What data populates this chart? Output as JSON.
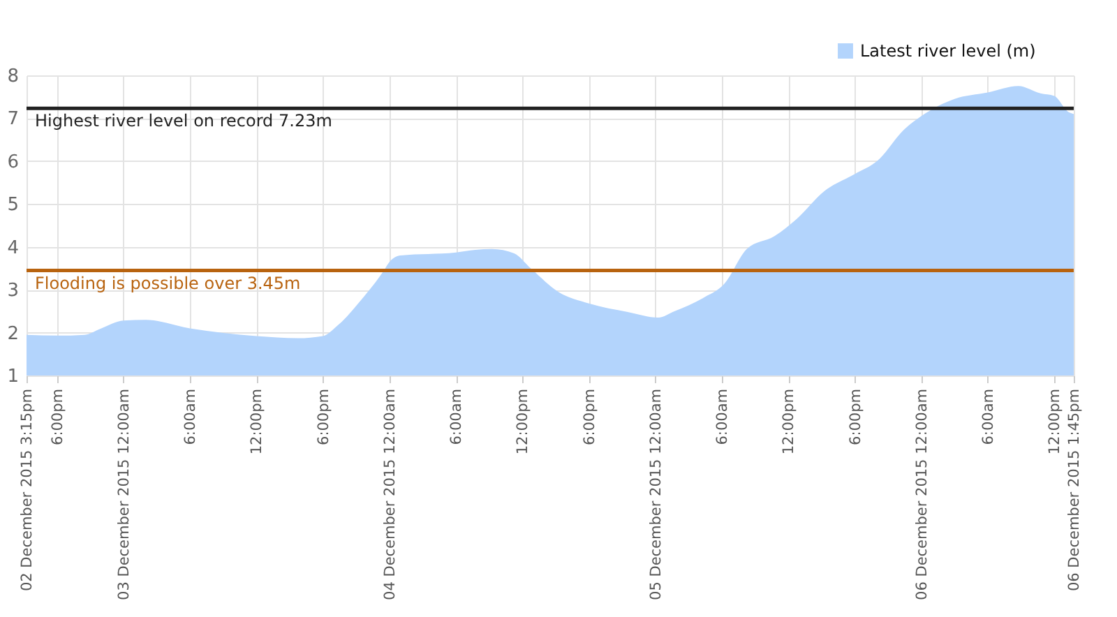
{
  "chart_data": {
    "type": "area",
    "x": [
      "2015-12-02T15:15",
      "2015-12-02T18:00",
      "2015-12-02T20:30",
      "2015-12-02T22:00",
      "2015-12-03T00:00",
      "2015-12-03T02:00",
      "2015-12-03T06:00",
      "2015-12-03T12:00",
      "2015-12-03T15:45",
      "2015-12-03T18:00",
      "2015-12-03T19:15",
      "2015-12-03T21:30",
      "2015-12-03T23:30",
      "2015-12-04T00:00",
      "2015-12-04T01:00",
      "2015-12-04T06:00",
      "2015-12-04T07:45",
      "2015-12-04T09:15",
      "2015-12-04T11:15",
      "2015-12-04T12:45",
      "2015-12-04T15:15",
      "2015-12-04T18:00",
      "2015-12-04T21:30",
      "2015-12-05T00:15",
      "2015-12-05T01:45",
      "2015-12-05T04:15",
      "2015-12-05T06:15",
      "2015-12-05T08:15",
      "2015-12-05T10:45",
      "2015-12-05T12:45",
      "2015-12-05T15:15",
      "2015-12-05T18:00",
      "2015-12-05T20:00",
      "2015-12-05T22:30",
      "2015-12-06T00:00",
      "2015-12-06T03:00",
      "2015-12-06T06:00",
      "2015-12-06T08:45",
      "2015-12-06T10:45",
      "2015-12-06T12:00",
      "2015-12-06T13:15",
      "2015-12-06T13:45"
    ],
    "series": [
      {
        "name": "Latest river level (m)",
        "color": "#b3d4fc",
        "values": [
          1.95,
          1.93,
          1.95,
          2.1,
          2.28,
          2.3,
          2.1,
          1.92,
          1.87,
          1.92,
          2.15,
          2.78,
          3.45,
          3.65,
          3.8,
          3.87,
          3.93,
          3.95,
          3.85,
          3.5,
          2.95,
          2.68,
          2.48,
          2.35,
          2.5,
          2.8,
          3.15,
          3.95,
          4.25,
          4.65,
          5.3,
          5.7,
          6.0,
          6.75,
          7.05,
          7.45,
          7.6,
          7.75,
          7.58,
          7.52,
          7.15,
          7.1
        ]
      }
    ],
    "xlim": [
      "2015-12-02T15:15",
      "2015-12-06T13:45"
    ],
    "xticks": [
      {
        "value": "2015-12-02T15:15",
        "label": "02 December 2015 3:15pm"
      },
      {
        "value": "2015-12-02T18:00",
        "label": "6:00pm"
      },
      {
        "value": "2015-12-03T00:00",
        "label": "03 December 2015 12:00am"
      },
      {
        "value": "2015-12-03T06:00",
        "label": "6:00am"
      },
      {
        "value": "2015-12-03T12:00",
        "label": "12:00pm"
      },
      {
        "value": "2015-12-03T18:00",
        "label": "6:00pm"
      },
      {
        "value": "2015-12-04T00:00",
        "label": "04 December 2015 12:00am"
      },
      {
        "value": "2015-12-04T06:00",
        "label": "6:00am"
      },
      {
        "value": "2015-12-04T12:00",
        "label": "12:00pm"
      },
      {
        "value": "2015-12-04T18:00",
        "label": "6:00pm"
      },
      {
        "value": "2015-12-05T00:00",
        "label": "05 December 2015 12:00am"
      },
      {
        "value": "2015-12-05T06:00",
        "label": "6:00am"
      },
      {
        "value": "2015-12-05T12:00",
        "label": "12:00pm"
      },
      {
        "value": "2015-12-05T18:00",
        "label": "6:00pm"
      },
      {
        "value": "2015-12-06T00:00",
        "label": "06 December 2015 12:00am"
      },
      {
        "value": "2015-12-06T06:00",
        "label": "6:00am"
      },
      {
        "value": "2015-12-06T12:00",
        "label": "12:00pm"
      },
      {
        "value": "2015-12-06T13:45",
        "label": "06 December 2015 1:45pm"
      }
    ],
    "ylim": [
      1,
      8
    ],
    "yticks": [
      1,
      2,
      3,
      4,
      5,
      6,
      7,
      8
    ],
    "ref_lines": [
      {
        "axis": "y",
        "value": 7.23,
        "label": "Highest river level on record 7.23m",
        "color": "#222222"
      },
      {
        "axis": "y",
        "value": 3.45,
        "label": "Flooding is possible over 3.45m",
        "color": "#b8630f"
      }
    ],
    "grid": true,
    "legend": "top right"
  }
}
